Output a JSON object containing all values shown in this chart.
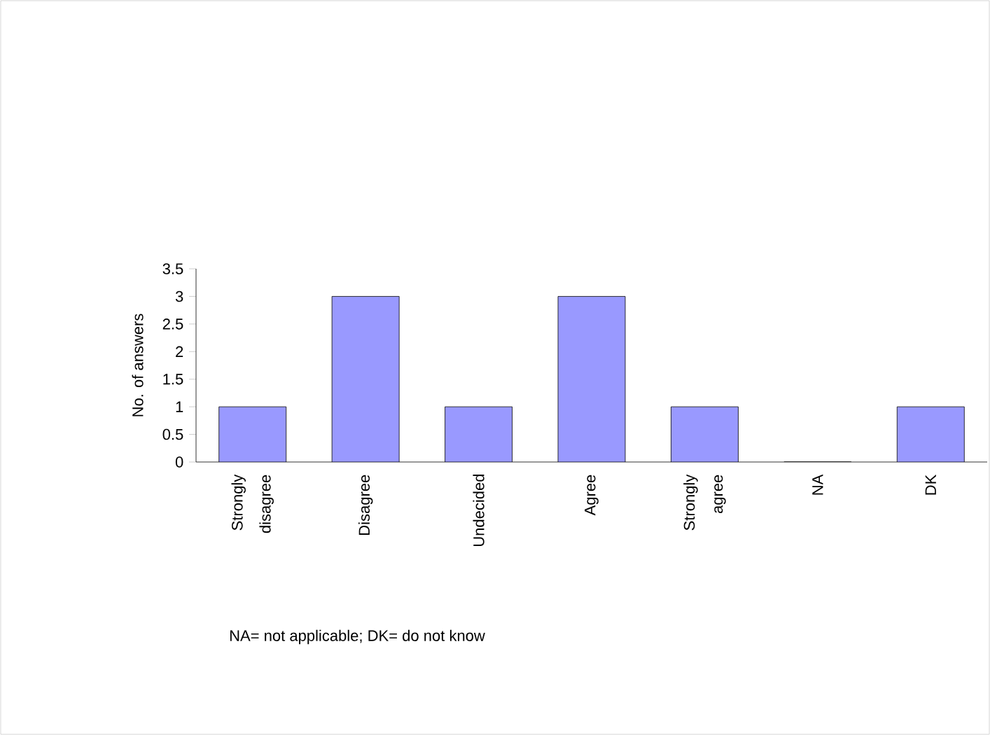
{
  "chart_data": {
    "type": "bar",
    "ylabel": "No. of answers",
    "categories": [
      "Strongly disagree",
      "Disagree",
      "Undecided",
      "Agree",
      "Strongly agree",
      "NA",
      "DK"
    ],
    "values": [
      1,
      3,
      1,
      3,
      1,
      0,
      1
    ],
    "color": "#9999ff",
    "ylim": [
      0,
      3.5
    ],
    "yticks": [
      0,
      0.5,
      1,
      1.5,
      2,
      2.5,
      3,
      3.5
    ],
    "grid": false,
    "annotations": [
      "NA= not applicable; DK= do not know"
    ]
  }
}
